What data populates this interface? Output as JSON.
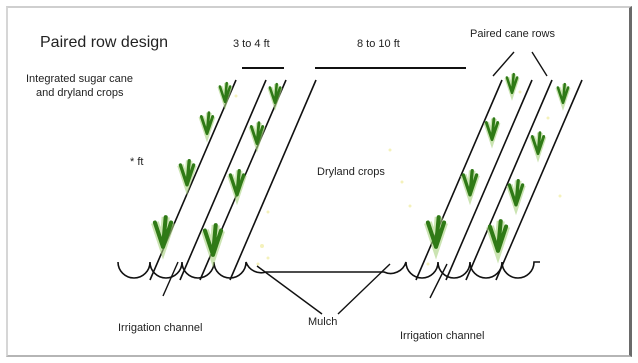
{
  "title": "Paired row design",
  "labels": {
    "integrated": [
      "Integrated sugar cane",
      "and dryland crops"
    ],
    "row_spacing": "3 to 4 ft",
    "pair_spacing": "8 to 10 ft",
    "paired_rows": "Paired cane rows",
    "height": "* ft",
    "dryland": "Dryland crops",
    "irrigation_left": "Irrigation channel",
    "mulch": "Mulch",
    "irrigation_right": "Irrigation channel"
  },
  "colors": {
    "line": "#111111",
    "plant": "#2f7a16",
    "plant_fade": "#a8d27f",
    "speckle": "#e8e26a"
  },
  "icons": [
    "sugar-cane-plant-icon"
  ]
}
